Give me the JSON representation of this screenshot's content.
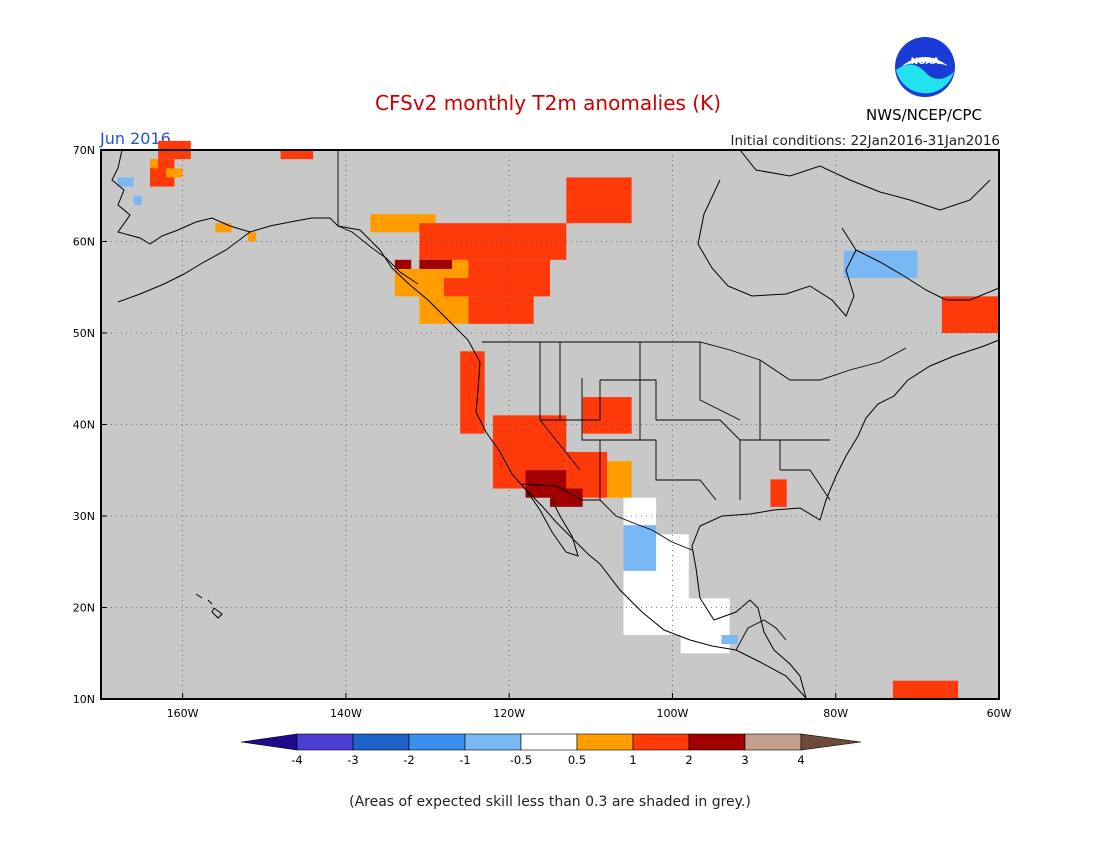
{
  "title": "CFSv2 monthly T2m anomalies (K)",
  "month_label": "Jun 2016",
  "initial_conditions": "Initial conditions: 22Jan2016-31Jan2016",
  "agency": "NWS/NCEP/CPC",
  "logo_text": "NOAA",
  "footnote": "(Areas of expected skill less than 0.3 are shaded in grey.)",
  "colors": {
    "title": "#cc0000",
    "month_label": "#2255cc",
    "map_background": "#c8c8c8",
    "no_skill_grey": "#c8c8c8"
  },
  "chart_data": {
    "type": "heatmap",
    "map_extent": {
      "lon": [
        -170,
        -60
      ],
      "lat": [
        10,
        70
      ]
    },
    "x_ticks": [
      {
        "value": -160,
        "label": "160W"
      },
      {
        "value": -140,
        "label": "140W"
      },
      {
        "value": -120,
        "label": "120W"
      },
      {
        "value": -100,
        "label": "100W"
      },
      {
        "value": -80,
        "label": "80W"
      },
      {
        "value": -60,
        "label": "60W"
      }
    ],
    "y_ticks": [
      {
        "value": 70,
        "label": "70N"
      },
      {
        "value": 60,
        "label": "60N"
      },
      {
        "value": 50,
        "label": "50N"
      },
      {
        "value": 40,
        "label": "40N"
      },
      {
        "value": 30,
        "label": "30N"
      },
      {
        "value": 20,
        "label": "20N"
      },
      {
        "value": 10,
        "label": "10N"
      }
    ],
    "grid": true,
    "legend": {
      "placement": "bottom",
      "tick_labels": [
        "-4",
        "-3",
        "-2",
        "-1",
        "-0.5",
        "0.5",
        "1",
        "2",
        "3",
        "4"
      ],
      "bins": [
        {
          "range": "< -4",
          "color": "#1f0a8c"
        },
        {
          "range": "-4 to -3",
          "color": "#4b3fd1"
        },
        {
          "range": "-3 to -2",
          "color": "#1d63c9"
        },
        {
          "range": "-2 to -1",
          "color": "#3a8ff0"
        },
        {
          "range": "-1 to -0.5",
          "color": "#7ab8f5"
        },
        {
          "range": "-0.5 to 0.5",
          "color": "#ffffff"
        },
        {
          "range": "0.5 to 1",
          "color": "#ff9d00"
        },
        {
          "range": "1 to 2",
          "color": "#ff3a0a"
        },
        {
          "range": "2 to 3",
          "color": "#a00000"
        },
        {
          "range": "3 to 4",
          "color": "#c4a08f"
        },
        {
          "range": "> 4",
          "color": "#6e4a3a"
        }
      ]
    },
    "regions": [
      {
        "name": "western-alaska",
        "value": 1.5,
        "cells": [
          [
            -163,
            69,
            4,
            2
          ],
          [
            -164,
            66,
            3,
            3
          ]
        ]
      },
      {
        "name": "western-alaska-warm",
        "value": 0.7,
        "cells": [
          [
            -162,
            67,
            2,
            1
          ],
          [
            -164,
            68,
            1,
            1
          ]
        ]
      },
      {
        "name": "bering-coast-cool",
        "value": -0.7,
        "cells": [
          [
            -168,
            66,
            2,
            1
          ],
          [
            -166,
            64,
            1,
            1
          ]
        ]
      },
      {
        "name": "north-slope",
        "value": 1.5,
        "cells": [
          [
            -148,
            69,
            4,
            1
          ]
        ]
      },
      {
        "name": "alaska-south-warm",
        "value": 0.7,
        "cells": [
          [
            -156,
            61,
            2,
            1
          ],
          [
            -152,
            60,
            1,
            1
          ],
          [
            -137,
            61,
            8,
            2
          ]
        ]
      },
      {
        "name": "yukon-bc",
        "value": 1.5,
        "cells": [
          [
            -131,
            58,
            18,
            4
          ],
          [
            -129,
            54,
            14,
            4
          ],
          [
            -125,
            51,
            8,
            3
          ]
        ]
      },
      {
        "name": "bc-coast-warm",
        "value": 0.7,
        "cells": [
          [
            -134,
            54,
            6,
            3
          ],
          [
            -131,
            51,
            6,
            3
          ],
          [
            -129,
            56,
            4,
            2
          ]
        ]
      },
      {
        "name": "bc-hot",
        "value": 2.5,
        "cells": [
          [
            -131,
            57,
            4,
            1
          ],
          [
            -134,
            57,
            2,
            1
          ]
        ]
      },
      {
        "name": "pacific-northwest",
        "value": 1.5,
        "cells": [
          [
            -126,
            39,
            3,
            9
          ]
        ]
      },
      {
        "name": "mackenzie-delta",
        "value": 1.5,
        "cells": [
          [
            -113,
            62,
            8,
            5
          ]
        ]
      },
      {
        "name": "labrador",
        "value": 1.5,
        "cells": [
          [
            -67,
            50,
            7,
            4
          ]
        ]
      },
      {
        "name": "quebec-cool",
        "value": -0.7,
        "cells": [
          [
            -79,
            56,
            9,
            3
          ]
        ]
      },
      {
        "name": "great-basin",
        "value": 1.5,
        "cells": [
          [
            -122,
            33,
            9,
            8
          ],
          [
            -113,
            32,
            5,
            5
          ]
        ]
      },
      {
        "name": "southwest-hot",
        "value": 2.5,
        "cells": [
          [
            -118,
            32,
            5,
            3
          ],
          [
            -115,
            31,
            4,
            2
          ]
        ]
      },
      {
        "name": "colorado",
        "value": 1.5,
        "cells": [
          [
            -111,
            39,
            6,
            4
          ]
        ]
      },
      {
        "name": "new-mexico",
        "value": 0.7,
        "cells": [
          [
            -108,
            32,
            3,
            4
          ]
        ]
      },
      {
        "name": "southern-plains-neutral",
        "value": 0.0,
        "cells": [
          [
            -106,
            28,
            4,
            4
          ]
        ]
      },
      {
        "name": "mexico-neutral",
        "value": 0.0,
        "cells": [
          [
            -106,
            17,
            8,
            11
          ],
          [
            -99,
            15,
            6,
            6
          ]
        ]
      },
      {
        "name": "mexico-cool",
        "value": -0.7,
        "cells": [
          [
            -106,
            24,
            4,
            5
          ],
          [
            -94,
            16,
            2,
            1
          ]
        ]
      },
      {
        "name": "southeast",
        "value": 1.5,
        "cells": [
          [
            -88,
            31,
            2,
            3
          ]
        ]
      },
      {
        "name": "caribbean",
        "value": 1.5,
        "cells": [
          [
            -73,
            10,
            8,
            2
          ]
        ]
      }
    ]
  }
}
